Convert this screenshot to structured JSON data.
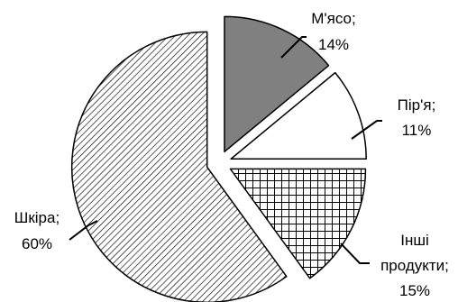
{
  "chart_data": {
    "type": "pie",
    "title": "",
    "slices": [
      {
        "name": "М'ясо",
        "value": 14,
        "value_label": "14%",
        "fill": "solid",
        "color": "#808080"
      },
      {
        "name": "Пір'я",
        "value": 11,
        "value_label": "11%",
        "fill": "none",
        "color": "#ffffff"
      },
      {
        "name": "Інші продукти",
        "name_lines": [
          "Інші",
          "продукти;"
        ],
        "value": 15,
        "value_label": "15%",
        "fill": "grid",
        "color": "#ffffff"
      },
      {
        "name": "Шкіра",
        "value": 60,
        "value_label": "60%",
        "fill": "diagonal-hatch",
        "color": "#ffffff"
      }
    ],
    "start_angle_deg": 0,
    "direction": "clockwise",
    "exploded": true,
    "legend": "none",
    "label_style": "name; percent with leader lines"
  }
}
